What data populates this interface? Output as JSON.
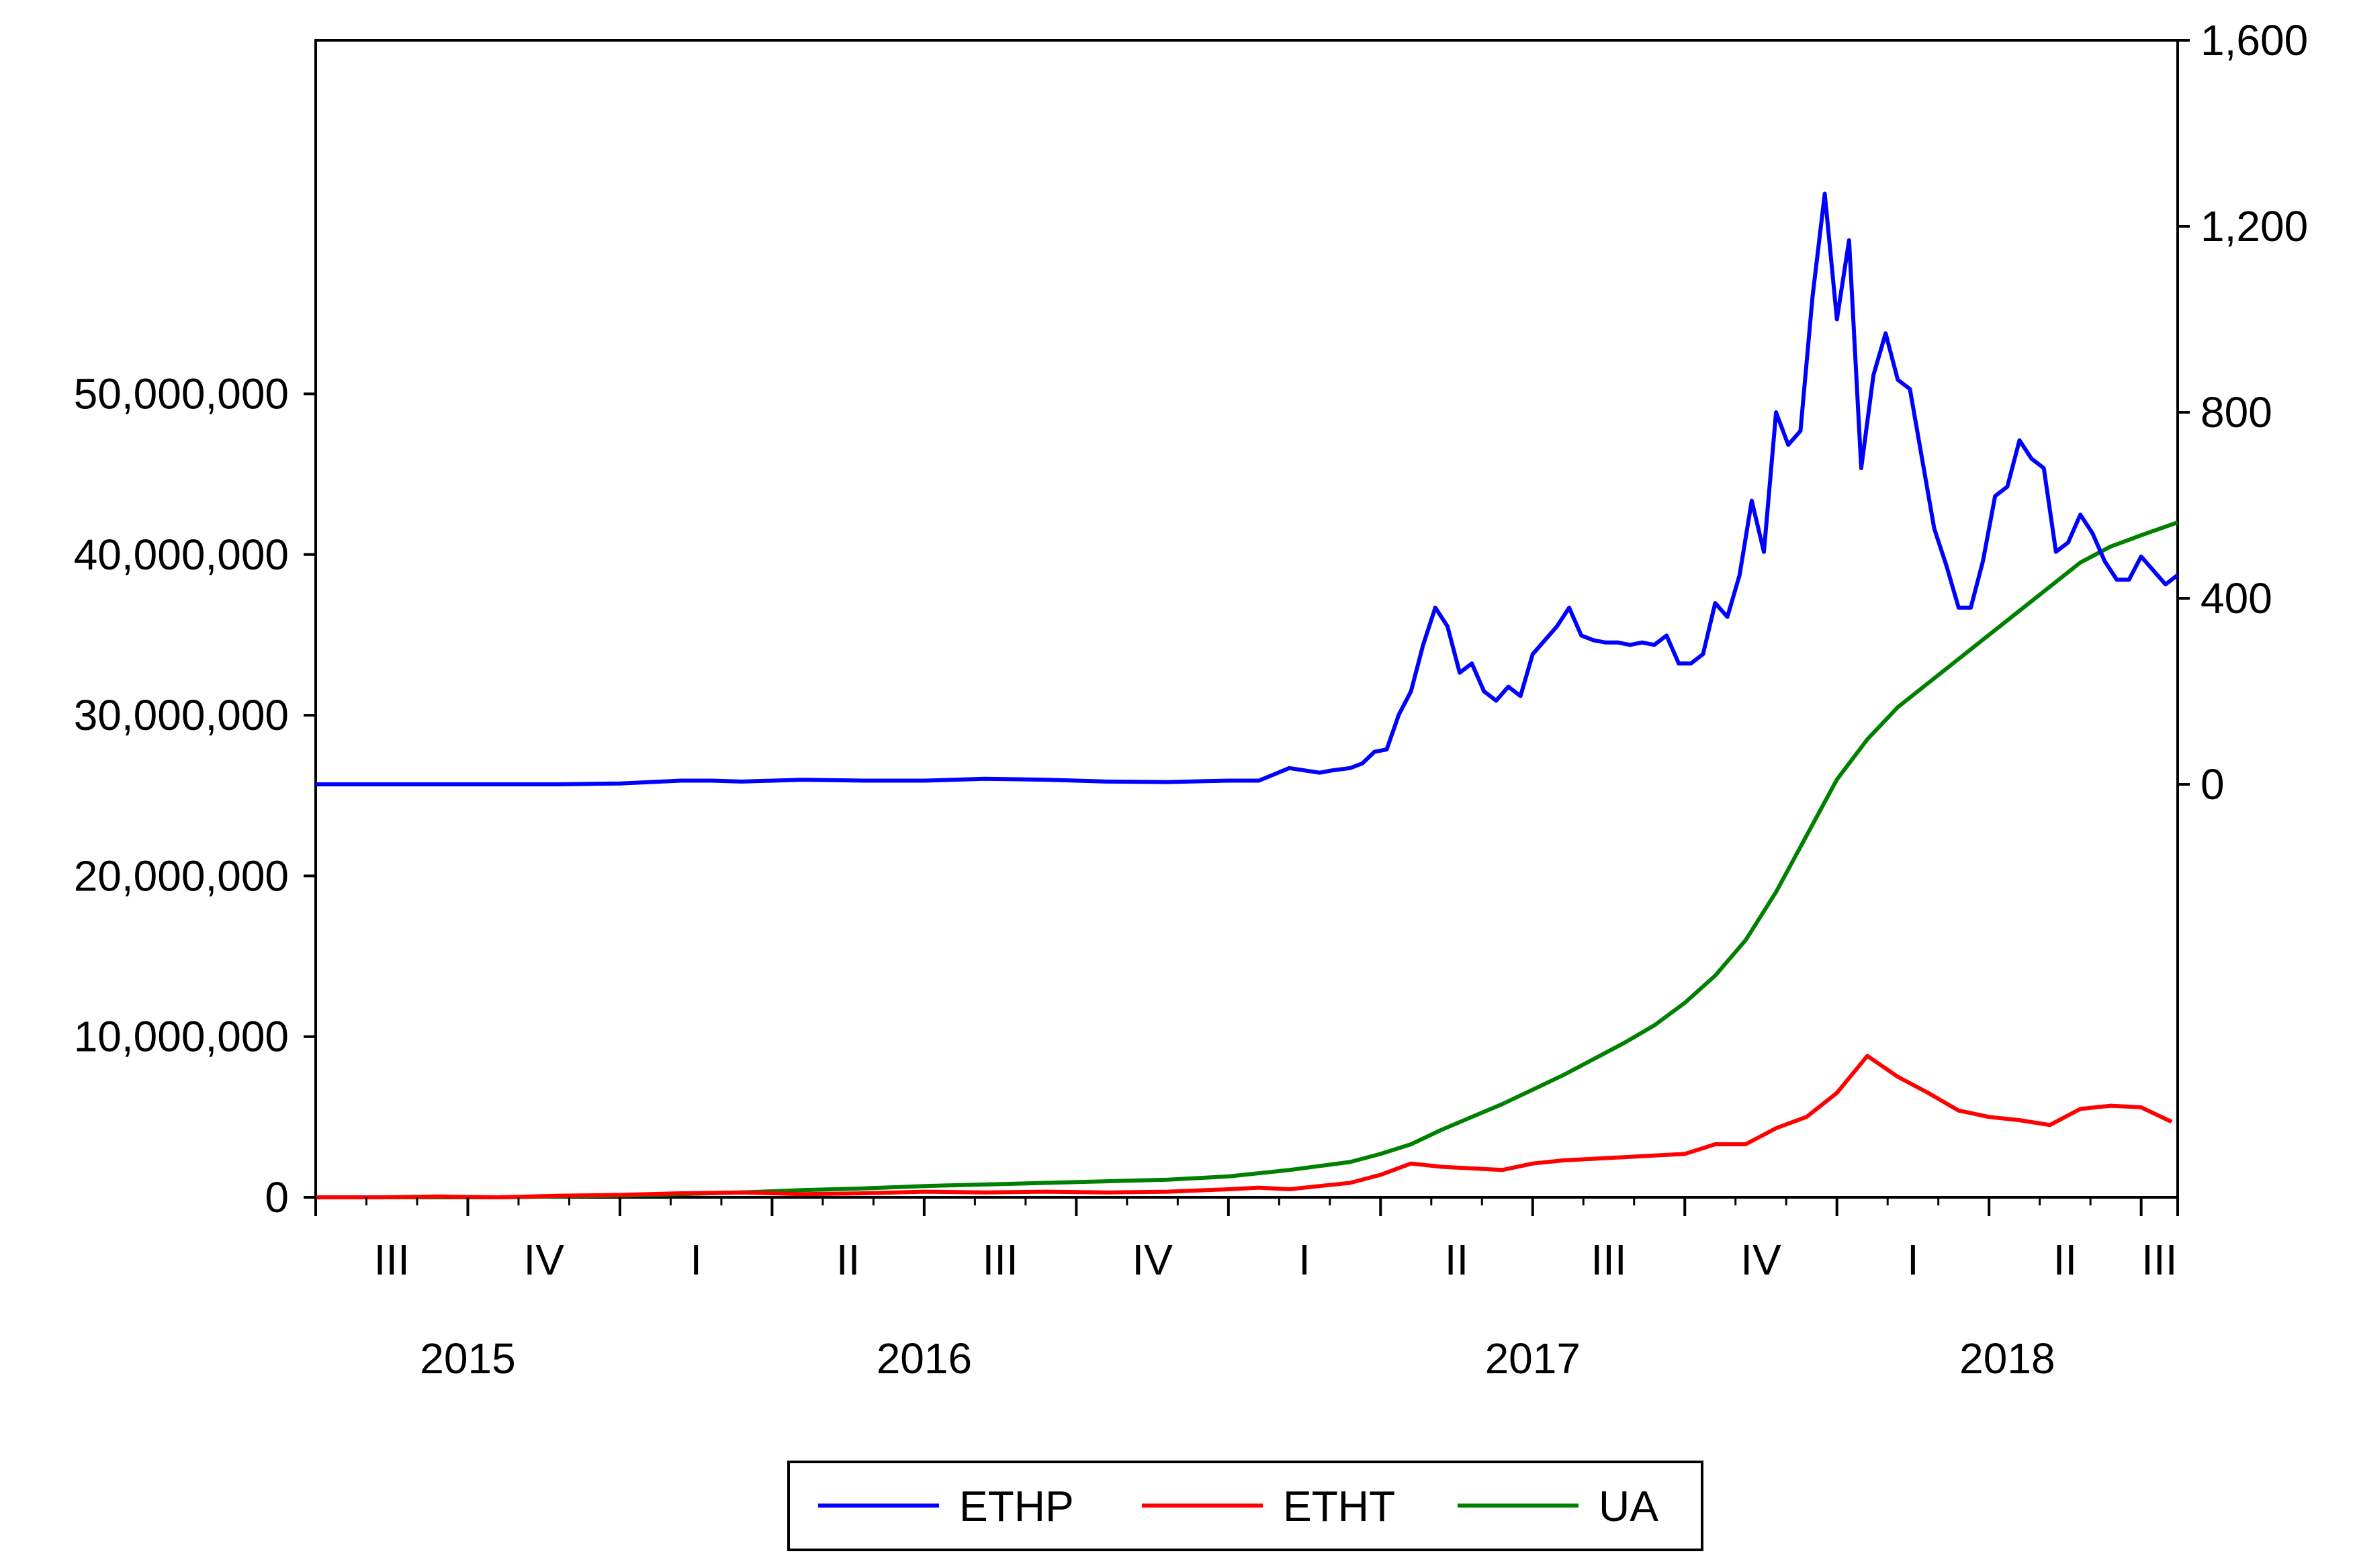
{
  "chart_data": {
    "type": "line",
    "title": "",
    "x_quarters": [
      {
        "label": "III",
        "year": "2015"
      },
      {
        "label": "IV",
        "year": "2015"
      },
      {
        "label": "I",
        "year": "2016"
      },
      {
        "label": "II",
        "year": "2016"
      },
      {
        "label": "III",
        "year": "2016"
      },
      {
        "label": "IV",
        "year": "2016"
      },
      {
        "label": "I",
        "year": "2017"
      },
      {
        "label": "II",
        "year": "2017"
      },
      {
        "label": "III",
        "year": "2017"
      },
      {
        "label": "IV",
        "year": "2017"
      },
      {
        "label": "I",
        "year": "2018"
      },
      {
        "label": "II",
        "year": "2018"
      },
      {
        "label": "III",
        "year": "2018"
      }
    ],
    "x_years": [
      "2015",
      "2016",
      "2017",
      "2018"
    ],
    "x_range": [
      "2015-07",
      "2018-07"
    ],
    "left_axis": {
      "min": 0,
      "max": 72000000,
      "ticks": [
        0,
        10000000,
        20000000,
        30000000,
        40000000,
        50000000
      ],
      "tick_labels": [
        "0",
        "10,000,000",
        "20,000,000",
        "30,000,000",
        "40,000,000",
        "50,000,000"
      ]
    },
    "right_axis": {
      "min": -888,
      "max": 1600,
      "ticks": [
        0,
        400,
        800,
        1200,
        1600
      ],
      "tick_labels": [
        "0",
        "400",
        "800",
        "1,200",
        "1,600"
      ]
    },
    "grid": false,
    "legend_position": "bottom-center",
    "series": [
      {
        "name": "ETHP",
        "axis": "right",
        "color": "#0000ff",
        "x": [
          2015.5,
          2015.6,
          2015.7,
          2015.8,
          2015.9,
          2016.0,
          2016.1,
          2016.15,
          2016.2,
          2016.3,
          2016.4,
          2016.5,
          2016.6,
          2016.7,
          2016.8,
          2016.9,
          2017.0,
          2017.05,
          2017.1,
          2017.15,
          2017.17,
          2017.2,
          2017.22,
          2017.24,
          2017.26,
          2017.28,
          2017.3,
          2017.32,
          2017.34,
          2017.36,
          2017.38,
          2017.4,
          2017.42,
          2017.44,
          2017.46,
          2017.48,
          2017.5,
          2017.52,
          2017.54,
          2017.56,
          2017.58,
          2017.6,
          2017.62,
          2017.64,
          2017.66,
          2017.68,
          2017.7,
          2017.72,
          2017.74,
          2017.76,
          2017.78,
          2017.8,
          2017.82,
          2017.84,
          2017.86,
          2017.88,
          2017.9,
          2017.92,
          2017.94,
          2017.96,
          2017.98,
          2018.0,
          2018.02,
          2018.04,
          2018.06,
          2018.08,
          2018.1,
          2018.12,
          2018.14,
          2018.16,
          2018.18,
          2018.2,
          2018.22,
          2018.24,
          2018.26,
          2018.28,
          2018.3,
          2018.32,
          2018.34,
          2018.36,
          2018.38,
          2018.4,
          2018.42,
          2018.44,
          2018.46,
          2018.48,
          2018.5,
          2018.52,
          2018.54,
          2018.56
        ],
        "y": [
          0,
          0,
          0,
          0,
          0,
          2,
          8,
          8,
          6,
          10,
          8,
          8,
          12,
          10,
          6,
          5,
          8,
          8,
          35,
          25,
          30,
          35,
          45,
          70,
          75,
          150,
          200,
          300,
          380,
          340,
          240,
          260,
          200,
          180,
          210,
          190,
          280,
          310,
          340,
          380,
          320,
          310,
          305,
          305,
          300,
          305,
          300,
          320,
          260,
          260,
          280,
          390,
          360,
          450,
          610,
          500,
          800,
          730,
          760,
          1050,
          1270,
          1000,
          1170,
          680,
          880,
          970,
          870,
          850,
          700,
          550,
          470,
          380,
          380,
          480,
          620,
          640,
          740,
          700,
          680,
          500,
          520,
          580,
          540,
          480,
          440,
          440,
          490,
          460,
          430,
          450
        ]
      },
      {
        "name": "ETHT",
        "axis": "left",
        "color": "#ff0000",
        "x": [
          2015.5,
          2015.6,
          2015.7,
          2015.8,
          2015.9,
          2016.0,
          2016.1,
          2016.2,
          2016.3,
          2016.4,
          2016.5,
          2016.6,
          2016.7,
          2016.8,
          2016.9,
          2017.0,
          2017.05,
          2017.1,
          2017.15,
          2017.2,
          2017.25,
          2017.3,
          2017.35,
          2017.4,
          2017.45,
          2017.5,
          2017.55,
          2017.6,
          2017.65,
          2017.7,
          2017.75,
          2017.8,
          2017.85,
          2017.9,
          2017.95,
          2018.0,
          2018.05,
          2018.1,
          2018.15,
          2018.2,
          2018.25,
          2018.3,
          2018.35,
          2018.4,
          2018.45,
          2018.5,
          2018.55
        ],
        "y": [
          0,
          0,
          50000,
          0,
          100000,
          150000,
          250000,
          300000,
          200000,
          250000,
          350000,
          300000,
          350000,
          300000,
          350000,
          500000,
          600000,
          500000,
          700000,
          900000,
          1400000,
          2100000,
          1900000,
          1800000,
          1700000,
          2100000,
          2300000,
          2400000,
          2500000,
          2600000,
          2700000,
          3300000,
          3300000,
          4300000,
          5000000,
          6500000,
          8800000,
          7500000,
          6500000,
          5400000,
          5000000,
          4800000,
          4500000,
          5500000,
          5700000,
          5600000,
          4700000
        ]
      },
      {
        "name": "UA",
        "axis": "left",
        "color": "#008000",
        "x": [
          2015.5,
          2015.6,
          2015.7,
          2015.8,
          2015.9,
          2016.0,
          2016.1,
          2016.2,
          2016.3,
          2016.4,
          2016.5,
          2016.6,
          2016.7,
          2016.8,
          2016.9,
          2017.0,
          2017.1,
          2017.2,
          2017.25,
          2017.3,
          2017.35,
          2017.4,
          2017.45,
          2017.5,
          2017.55,
          2017.6,
          2017.65,
          2017.7,
          2017.75,
          2017.8,
          2017.85,
          2017.9,
          2017.95,
          2018.0,
          2018.05,
          2018.1,
          2018.15,
          2018.2,
          2018.25,
          2018.3,
          2018.35,
          2018.4,
          2018.45,
          2018.5,
          2018.56
        ],
        "y": [
          0,
          0,
          0,
          0,
          50000,
          100000,
          200000,
          300000,
          450000,
          550000,
          700000,
          800000,
          900000,
          1000000,
          1100000,
          1300000,
          1700000,
          2200000,
          2700000,
          3300000,
          4200000,
          5000000,
          5800000,
          6700000,
          7600000,
          8600000,
          9600000,
          10700000,
          12100000,
          13800000,
          16000000,
          19000000,
          22500000,
          26000000,
          28500000,
          30500000,
          32000000,
          33500000,
          35000000,
          36500000,
          38000000,
          39500000,
          40500000,
          41200000,
          42000000
        ]
      }
    ]
  },
  "legend": {
    "items": [
      {
        "label": "ETHP",
        "color": "#0000ff"
      },
      {
        "label": "ETHT",
        "color": "#ff0000"
      },
      {
        "label": "UA",
        "color": "#008000"
      }
    ]
  }
}
